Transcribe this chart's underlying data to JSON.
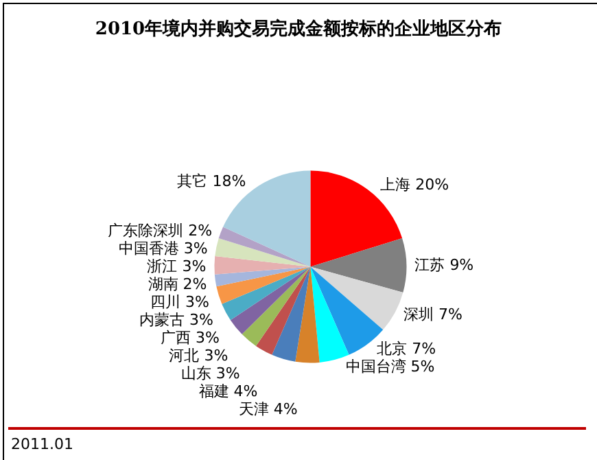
{
  "chart_data": {
    "type": "pie",
    "title": "2010年境内并购交易完成金额按标的企业地区分布",
    "categories": [
      "上海",
      "江苏",
      "深圳",
      "北京",
      "中国台湾",
      "天津",
      "福建",
      "山东",
      "河北",
      "广西",
      "内蒙古",
      "四川",
      "湖南",
      "浙江",
      "中国香港",
      "广东除深圳",
      "其它"
    ],
    "values": [
      20,
      9,
      7,
      7,
      5,
      4,
      4,
      3,
      3,
      3,
      3,
      3,
      2,
      3,
      3,
      2,
      18
    ],
    "value_labels": [
      "20%",
      "9%",
      "7%",
      "7%",
      "5%",
      "4%",
      "4%",
      "3%",
      "3%",
      "3%",
      "3%",
      "3%",
      "2%",
      "3%",
      "3%",
      "2%",
      "18%"
    ],
    "colors": [
      "#ff0000",
      "#808080",
      "#d9d9d9",
      "#1e9be8",
      "#00ffff",
      "#d7822a",
      "#4a7ebb",
      "#c0504d",
      "#9bbb59",
      "#8064a2",
      "#4bacc6",
      "#f79646",
      "#a5b6dd",
      "#e6b0b0",
      "#d7e4bd",
      "#b3a2c7",
      "#a9cfe0"
    ],
    "legend": false,
    "annotations": [
      "2011.01"
    ]
  }
}
